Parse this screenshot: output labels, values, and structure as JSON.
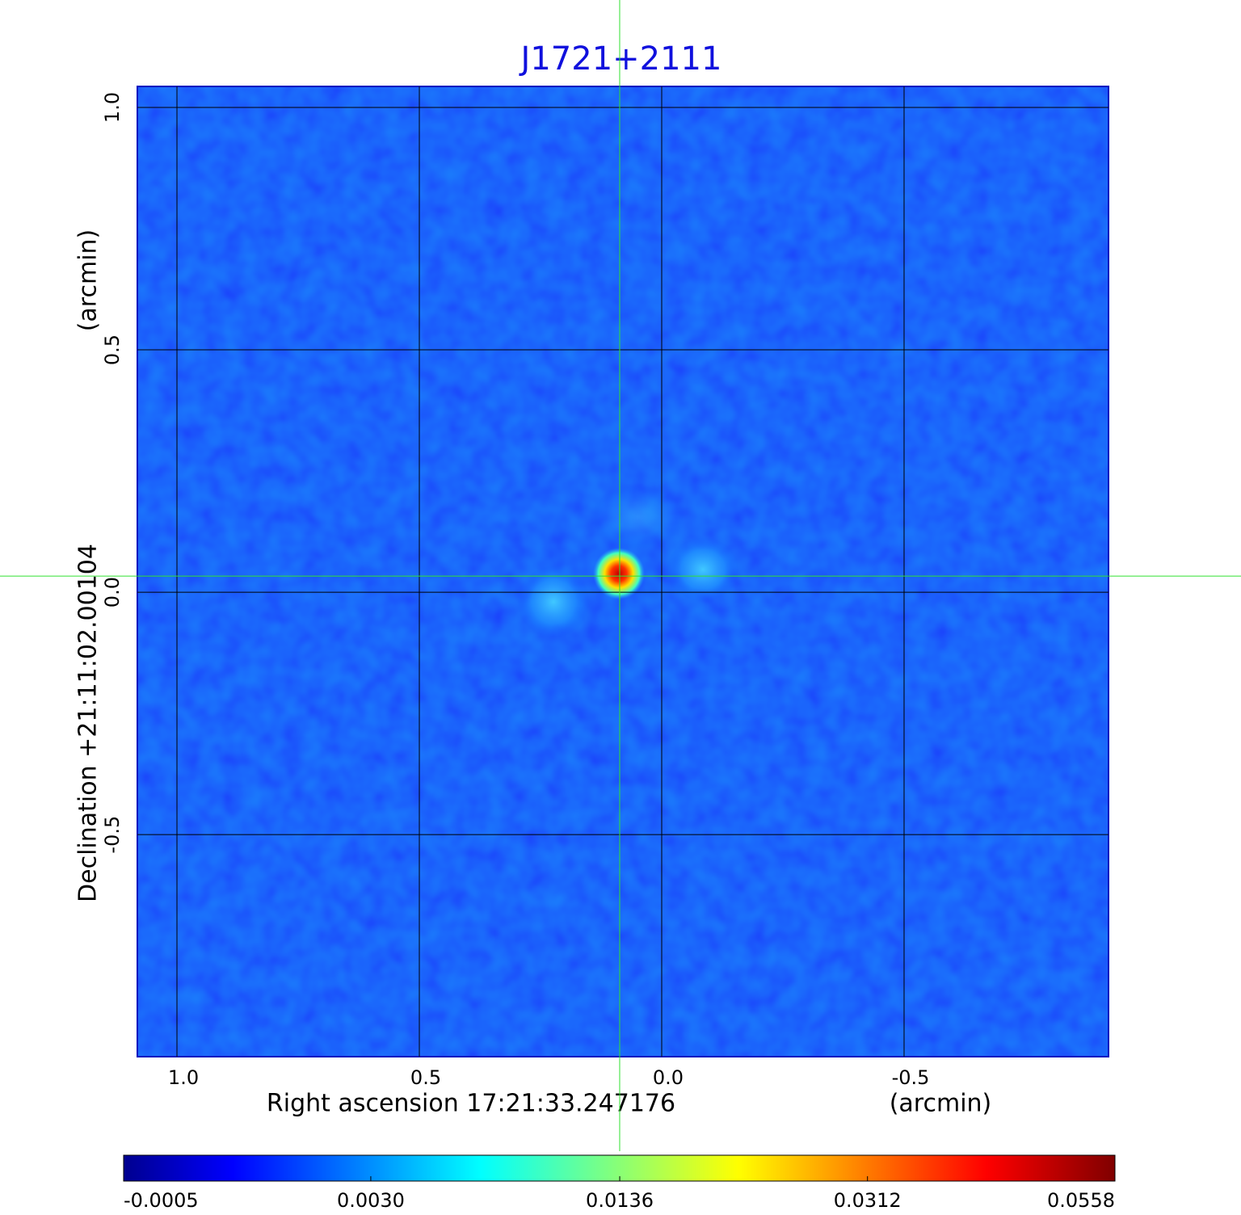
{
  "chart_data": {
    "type": "image",
    "title": "J1721+2111",
    "xlabel": "Right ascension  17:21:33.247176",
    "xunit": "(arcmin)",
    "ylabel": "Declination  +21:11:02.00104",
    "yunit": "(arcmin)",
    "xlim": [
      1.0817,
      -0.9217
    ],
    "ylim": [
      -0.958,
      1.0433
    ],
    "xticks": [
      {
        "value": 1.0,
        "label": "1.0"
      },
      0.5,
      {
        "value": 0.0,
        "label": "0.0"
      },
      -0.5
    ],
    "yticks": [
      {
        "value": 1.0,
        "label": "1.0"
      },
      0.5,
      {
        "value": 0.0,
        "label": "0.0"
      },
      -0.5
    ],
    "grid": true,
    "crosshair": [
      0.0867,
      0.0333
    ],
    "colorbar": {
      "colormap": "jet",
      "scale": "sqrt",
      "clim": [
        -0.0005,
        0.0558
      ],
      "ticks": [
        -0.0005,
        {
          "value": 0.003,
          "label": "0.0030"
        },
        0.0136,
        0.0312,
        0.0558
      ]
    }
  }
}
